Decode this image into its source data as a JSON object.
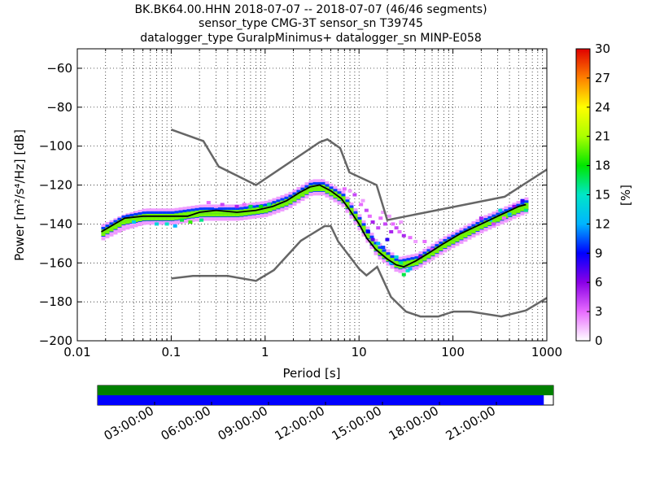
{
  "chart_data": {
    "type": "heatmap",
    "title_lines": [
      "BK.BK64.00.HHN   2018-07-07 -- 2018-07-07  (46/46 segments)",
      "sensor_type CMG-3T sensor_sn T39745",
      "datalogger_type GuralpMinimus+ datalogger_sn MINP-E058"
    ],
    "xlabel": "Period [s]",
    "ylabel": "Power [m²/s⁴/Hz] [dB]",
    "x_scale": "log",
    "xlim": [
      0.01,
      1000
    ],
    "ylim": [
      -200,
      -50
    ],
    "x_ticks": [
      0.01,
      0.1,
      1,
      10,
      100,
      1000
    ],
    "x_tick_labels": [
      "0.01",
      "0.1",
      "1",
      "10",
      "100",
      "1000"
    ],
    "y_ticks": [
      -200,
      -180,
      -160,
      -140,
      -120,
      -100,
      -80,
      -60
    ],
    "y_tick_labels": [
      "−200",
      "−180",
      "−160",
      "−140",
      "−120",
      "−100",
      "−80",
      "−60"
    ],
    "grid": true,
    "colorbar": {
      "label": "[%]",
      "range": [
        0,
        30
      ],
      "ticks": [
        0,
        3,
        6,
        9,
        12,
        15,
        18,
        21,
        24,
        27,
        30
      ],
      "tick_labels": [
        "0",
        "3",
        "6",
        "9",
        "12",
        "15",
        "18",
        "21",
        "24",
        "27",
        "30"
      ]
    },
    "noise_models": [
      {
        "name": "NHNM",
        "color": "#666666",
        "points": [
          [
            0.1,
            -91.5
          ],
          [
            0.22,
            -97.4
          ],
          [
            0.32,
            -110.5
          ],
          [
            0.8,
            -120
          ],
          [
            3.8,
            -98
          ],
          [
            4.6,
            -96.5
          ],
          [
            6.3,
            -101
          ],
          [
            7.9,
            -113.5
          ],
          [
            15.4,
            -120
          ],
          [
            20,
            -138
          ],
          [
            354.8,
            -126
          ],
          [
            1000,
            -112
          ]
        ]
      },
      {
        "name": "NLNM",
        "color": "#666666",
        "points": [
          [
            0.1,
            -168
          ],
          [
            0.17,
            -166.7
          ],
          [
            0.4,
            -166.7
          ],
          [
            0.8,
            -169.2
          ],
          [
            1.24,
            -163.7
          ],
          [
            2.4,
            -148.6
          ],
          [
            4.3,
            -141.1
          ],
          [
            5,
            -141.1
          ],
          [
            6,
            -149
          ],
          [
            10,
            -163
          ],
          [
            12,
            -166.4
          ],
          [
            15.6,
            -162
          ],
          [
            21.9,
            -177.5
          ],
          [
            31.6,
            -185
          ],
          [
            45,
            -187.5
          ],
          [
            70,
            -187.5
          ],
          [
            101,
            -185
          ],
          [
            154,
            -185
          ],
          [
            328,
            -187.5
          ],
          [
            600,
            -184.4
          ],
          [
            1000,
            -178
          ]
        ]
      }
    ],
    "median_curve": [
      [
        0.018,
        -144
      ],
      [
        0.025,
        -140
      ],
      [
        0.032,
        -137
      ],
      [
        0.05,
        -136
      ],
      [
        0.1,
        -136
      ],
      [
        0.15,
        -136
      ],
      [
        0.2,
        -134
      ],
      [
        0.3,
        -133
      ],
      [
        0.5,
        -134
      ],
      [
        0.8,
        -133
      ],
      [
        1.2,
        -131
      ],
      [
        1.7,
        -128
      ],
      [
        2.3,
        -124
      ],
      [
        3.0,
        -121
      ],
      [
        3.8,
        -120
      ],
      [
        5.0,
        -123
      ],
      [
        6.5,
        -127
      ],
      [
        8.0,
        -133
      ],
      [
        10,
        -140
      ],
      [
        12,
        -147
      ],
      [
        15,
        -153
      ],
      [
        20,
        -158
      ],
      [
        25,
        -161
      ],
      [
        30,
        -162
      ],
      [
        40,
        -159
      ],
      [
        55,
        -155
      ],
      [
        80,
        -150
      ],
      [
        120,
        -145
      ],
      [
        200,
        -140
      ],
      [
        300,
        -136
      ],
      [
        500,
        -131
      ],
      [
        600,
        -130
      ]
    ],
    "density_bands": [
      {
        "center": [
          [
            0.018,
            -144
          ],
          [
            0.03,
            -139
          ],
          [
            0.05,
            -136
          ],
          [
            0.1,
            -136
          ],
          [
            0.2,
            -134
          ],
          [
            0.5,
            -134
          ],
          [
            1,
            -132
          ],
          [
            1.7,
            -128
          ],
          [
            3,
            -121
          ],
          [
            4,
            -121
          ],
          [
            6.5,
            -127
          ],
          [
            10,
            -140
          ],
          [
            15,
            -153
          ],
          [
            25,
            -161
          ],
          [
            40,
            -159
          ],
          [
            80,
            -150
          ],
          [
            200,
            -140
          ],
          [
            600,
            -130
          ]
        ],
        "halfwidth_db": 4,
        "percent": 2
      },
      {
        "center": [
          [
            0.018,
            -144
          ],
          [
            0.03,
            -138
          ],
          [
            0.05,
            -136
          ],
          [
            0.1,
            -136
          ],
          [
            0.2,
            -134
          ],
          [
            0.5,
            -134
          ],
          [
            1,
            -132
          ],
          [
            1.7,
            -128
          ],
          [
            3,
            -121
          ],
          [
            4,
            -121
          ],
          [
            6.5,
            -127
          ],
          [
            10,
            -140
          ],
          [
            15,
            -153
          ],
          [
            25,
            -161
          ],
          [
            40,
            -159
          ],
          [
            80,
            -150
          ],
          [
            200,
            -140
          ],
          [
            600,
            -130
          ]
        ],
        "halfwidth_db": 2.5,
        "percent": 10
      },
      {
        "center": [
          [
            0.018,
            -144
          ],
          [
            0.03,
            -138
          ],
          [
            0.05,
            -136
          ],
          [
            0.1,
            -136
          ],
          [
            0.2,
            -134
          ],
          [
            0.5,
            -134
          ],
          [
            1,
            -132
          ],
          [
            1.7,
            -128
          ],
          [
            3,
            -121
          ],
          [
            4,
            -121
          ],
          [
            6.5,
            -127
          ],
          [
            10,
            -140
          ],
          [
            15,
            -153
          ],
          [
            25,
            -161
          ],
          [
            40,
            -159
          ],
          [
            80,
            -150
          ],
          [
            200,
            -140
          ],
          [
            600,
            -130
          ]
        ],
        "halfwidth_db": 1.2,
        "percent": 20
      }
    ],
    "scattered_cells": [
      [
        0.25,
        -129,
        3
      ],
      [
        0.3,
        -131,
        2
      ],
      [
        0.35,
        -130,
        4
      ],
      [
        0.5,
        -131,
        5
      ],
      [
        0.6,
        -130,
        3
      ],
      [
        0.09,
        -140,
        15
      ],
      [
        0.11,
        -141,
        12
      ],
      [
        0.07,
        -140,
        14
      ],
      [
        0.04,
        -139,
        13
      ],
      [
        0.13,
        -138,
        17
      ],
      [
        0.16,
        -139,
        19
      ],
      [
        0.21,
        -138,
        16
      ],
      [
        0.9,
        -131,
        18
      ],
      [
        1.1,
        -130,
        16
      ],
      [
        0.7,
        -131,
        17
      ],
      [
        7,
        -122,
        3
      ],
      [
        8,
        -123,
        2
      ],
      [
        9,
        -125,
        4
      ],
      [
        10.5,
        -130,
        3
      ],
      [
        12,
        -133,
        4
      ],
      [
        11,
        -128,
        2
      ],
      [
        13,
        -136,
        3
      ],
      [
        14,
        -139,
        5
      ],
      [
        16,
        -142,
        4
      ],
      [
        18,
        -134,
        2
      ],
      [
        17,
        -137,
        3
      ],
      [
        19,
        -140,
        4
      ],
      [
        21,
        -136,
        2
      ],
      [
        23,
        -140,
        3
      ],
      [
        25,
        -142,
        4
      ],
      [
        27,
        -144,
        3
      ],
      [
        30,
        -146,
        5
      ],
      [
        35,
        -147,
        3
      ],
      [
        40,
        -149,
        2
      ],
      [
        28,
        -139,
        2
      ],
      [
        22,
        -144,
        5
      ],
      [
        20,
        -148,
        8
      ],
      [
        18,
        -152,
        10
      ],
      [
        16,
        -150,
        12
      ],
      [
        14,
        -148,
        7
      ],
      [
        12.5,
        -144,
        9
      ],
      [
        25,
        -157,
        14
      ],
      [
        28,
        -160,
        16
      ],
      [
        33,
        -164,
        15
      ],
      [
        22,
        -160,
        13
      ],
      [
        30,
        -166,
        17
      ],
      [
        35,
        -163,
        12
      ],
      [
        45,
        -157,
        6
      ],
      [
        60,
        -153,
        4
      ],
      [
        50,
        -149,
        3
      ],
      [
        320,
        -133,
        14
      ],
      [
        400,
        -135,
        12
      ],
      [
        250,
        -138,
        13
      ],
      [
        270,
        -140,
        4
      ],
      [
        200,
        -137,
        5
      ],
      [
        550,
        -128,
        8
      ],
      [
        600,
        -133,
        16
      ],
      [
        450,
        -131,
        6
      ],
      [
        350,
        -137,
        3
      ]
    ],
    "segment_timeline": {
      "tick_labels": [
        "03:00:00",
        "06:00:00",
        "09:00:00",
        "12:00:00",
        "15:00:00",
        "18:00:00",
        "21:00:00"
      ],
      "tick_hours": [
        3,
        6,
        9,
        12,
        15,
        18,
        21
      ],
      "span_hours": [
        0,
        24
      ],
      "bars": [
        {
          "color": "#008000",
          "fill_fraction": 1.0
        },
        {
          "color": "#0000ff",
          "fill_fraction": 0.979
        }
      ]
    }
  }
}
